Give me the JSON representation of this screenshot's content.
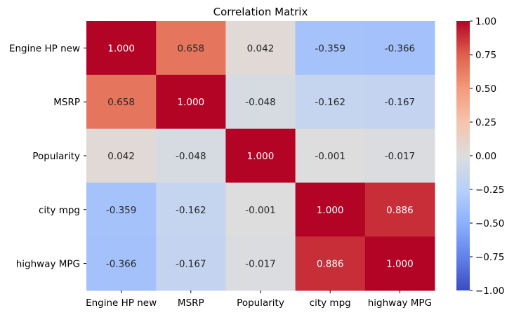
{
  "chart_data": {
    "type": "heatmap",
    "title": "Correlation Matrix",
    "xlabel": "",
    "ylabel": "",
    "x_labels": [
      "Engine HP new",
      "MSRP",
      "Popularity",
      "city mpg",
      "highway MPG"
    ],
    "y_labels": [
      "Engine HP new",
      "MSRP",
      "Popularity",
      "city mpg",
      "highway MPG"
    ],
    "values": [
      [
        1.0,
        0.658,
        0.042,
        -0.359,
        -0.366
      ],
      [
        0.658,
        1.0,
        -0.048,
        -0.162,
        -0.167
      ],
      [
        0.042,
        -0.048,
        1.0,
        -0.001,
        -0.017
      ],
      [
        -0.359,
        -0.162,
        -0.001,
        1.0,
        0.886
      ],
      [
        -0.366,
        -0.167,
        -0.017,
        0.886,
        1.0
      ]
    ],
    "value_format": "3 decimals",
    "colormap": "coolwarm",
    "vmin": -1,
    "vmax": 1,
    "colorbar_ticks": [
      "1.00",
      "0.75",
      "0.50",
      "0.25",
      "0.00",
      "−0.25",
      "−0.50",
      "−0.75",
      "−1.00"
    ],
    "grid": false,
    "legend": "colorbar-right"
  }
}
